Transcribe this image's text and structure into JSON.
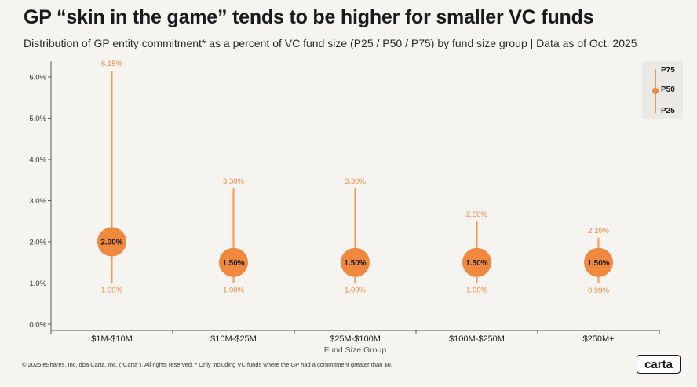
{
  "title": "GP “skin in the game” tends to be higher for smaller VC funds",
  "subtitle": "Distribution of GP entity commitment* as a percent of VC fund size (P25 / P50 / P75) by fund size group | Data as of Oct. 2025",
  "footnote": "© 2025 eShares, Inc. dba Carta, Inc. (“Carta”). All rights reserved.  * Only including VC funds where the GP had a commitment greater than $0.",
  "logo_text": "carta",
  "legend": {
    "p75": "P75",
    "p50": "P50",
    "p25": "P25"
  },
  "colors": {
    "accent": "#f0883e",
    "line": "#f39a52",
    "label": "#f0883e",
    "axis": "#555555"
  },
  "chart_data": {
    "type": "range",
    "xlabel": "Fund Size Group",
    "ylabel": "",
    "ylim": [
      0,
      6.3
    ],
    "yticks": [
      0,
      1,
      2,
      3,
      4,
      5,
      6
    ],
    "ytick_labels": [
      "0.0%",
      "1.0%",
      "2.0%",
      "3.0%",
      "4.0%",
      "5.0%",
      "6.0%"
    ],
    "categories": [
      "$1M-$10M",
      "$10M-$25M",
      "$25M-$100M",
      "$100M-$250M",
      "$250M+"
    ],
    "series": [
      {
        "name": "P25",
        "values": [
          1.0,
          1.0,
          1.0,
          1.0,
          0.99
        ],
        "labels": [
          "1.00%",
          "1.00%",
          "1.00%",
          "1.00%",
          "0.99%"
        ]
      },
      {
        "name": "P50",
        "values": [
          2.0,
          1.5,
          1.5,
          1.5,
          1.5
        ],
        "labels": [
          "2.00%",
          "1.50%",
          "1.50%",
          "1.50%",
          "1.50%"
        ]
      },
      {
        "name": "P75",
        "values": [
          6.15,
          3.3,
          3.3,
          2.5,
          2.1
        ],
        "labels": [
          "6.15%",
          "3.30%",
          "3.30%",
          "2.50%",
          "2.10%"
        ]
      }
    ]
  }
}
